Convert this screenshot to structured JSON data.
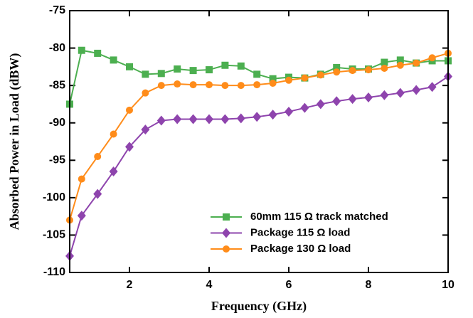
{
  "chart_data": {
    "type": "line",
    "x_label": "Frequency (GHz)",
    "y_label": "Absorbed Power in Load (dBW)",
    "x": [
      0.5,
      0.8,
      1.2,
      1.6,
      2.0,
      2.4,
      2.8,
      3.2,
      3.6,
      4.0,
      4.4,
      4.8,
      5.2,
      5.6,
      6.0,
      6.4,
      6.8,
      7.2,
      7.6,
      8.0,
      8.4,
      8.8,
      9.2,
      9.6,
      10.0
    ],
    "series": [
      {
        "name": "60mm 115 Ω track matched",
        "color": "#4caf50",
        "marker": "square",
        "values": [
          -87.5,
          -80.3,
          -80.7,
          -81.6,
          -82.5,
          -83.5,
          -83.4,
          -82.8,
          -83.0,
          -82.9,
          -82.3,
          -82.4,
          -83.5,
          -84.1,
          -83.9,
          -84.0,
          -83.5,
          -82.6,
          -82.8,
          -82.8,
          -81.9,
          -81.6,
          -82.0,
          -81.7,
          -81.7
        ]
      },
      {
        "name": "Package 115 Ω  load",
        "color": "#8e44ad",
        "marker": "diamond",
        "values": [
          -107.8,
          -102.4,
          -99.5,
          -96.5,
          -93.2,
          -90.9,
          -89.7,
          -89.5,
          -89.5,
          -89.5,
          -89.5,
          -89.4,
          -89.2,
          -88.9,
          -88.5,
          -88.0,
          -87.5,
          -87.1,
          -86.8,
          -86.6,
          -86.3,
          -86.0,
          -85.6,
          -85.2,
          -83.8
        ]
      },
      {
        "name": "Package 130 Ω  load",
        "color": "#ff8c1a",
        "marker": "circle",
        "values": [
          -103.0,
          -97.5,
          -94.5,
          -91.5,
          -88.3,
          -86.0,
          -85.0,
          -84.8,
          -84.9,
          -84.9,
          -85.0,
          -85.0,
          -84.9,
          -84.7,
          -84.3,
          -84.0,
          -83.6,
          -83.2,
          -83.0,
          -82.9,
          -82.7,
          -82.3,
          -82.0,
          -81.3,
          -80.7
        ]
      }
    ],
    "xlim": [
      0.5,
      10
    ],
    "xticks": [
      2,
      4,
      6,
      8,
      10
    ],
    "ylim": [
      -110,
      -75
    ],
    "yticks": [
      -110,
      -105,
      -100,
      -95,
      -90,
      -85,
      -80,
      -75
    ],
    "legend": "lower right"
  }
}
